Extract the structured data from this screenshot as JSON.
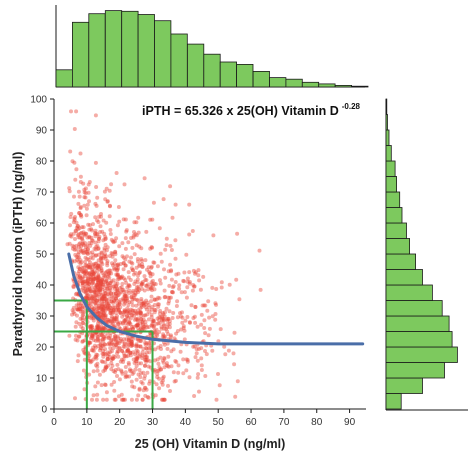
{
  "chart_data": {
    "type": "scatter",
    "title": "",
    "xlabel": "25 (OH) Vitamin D (ng/ml)",
    "ylabel": "Parathyroid hormon (iPTH) (ng/ml)",
    "xlim": [
      0,
      95
    ],
    "ylim": [
      0,
      100
    ],
    "x_ticks": [
      "0",
      "10",
      "20",
      "30",
      "40",
      "50",
      "60",
      "70",
      "80",
      "90"
    ],
    "y_ticks": [
      "0",
      "10",
      "20",
      "30",
      "40",
      "50",
      "60",
      "70",
      "80",
      "90",
      "100"
    ],
    "grid": false,
    "equation": {
      "text": "iPTH = 65.326 x 25(OH) Vitamin D",
      "exponent": "-0.28"
    },
    "colors": {
      "points": "#e8483a",
      "fit_line": "#4a6ea8",
      "guides": "#3aa845",
      "histogram_fill": "#7dc95e",
      "histogram_stroke": "#1a1a1a"
    },
    "fit_curve": {
      "x": [
        4.5,
        6,
        8,
        10,
        13,
        16,
        20,
        25,
        30,
        40,
        50,
        60,
        70,
        80,
        94
      ],
      "y": [
        50,
        43,
        37,
        33,
        29.5,
        27,
        25,
        23.5,
        22.5,
        21.5,
        21,
        21,
        21,
        21,
        21
      ]
    },
    "guide_lines": [
      {
        "x": 10,
        "y": 35
      },
      {
        "x": 30,
        "y": 25
      }
    ],
    "scatter_summary": {
      "n_points": 1800,
      "x_range": [
        3,
        92
      ],
      "y_range": [
        3,
        96
      ]
    },
    "histogram_x": {
      "bin_edges": [
        0,
        5,
        10,
        15,
        20,
        25,
        30,
        35,
        40,
        45,
        50,
        55,
        60,
        65,
        70,
        75,
        80,
        85,
        90,
        95
      ],
      "relative_heights": [
        0.22,
        0.83,
        0.94,
        0.98,
        0.97,
        0.93,
        0.85,
        0.68,
        0.55,
        0.42,
        0.32,
        0.29,
        0.2,
        0.12,
        0.1,
        0.06,
        0.04,
        0.02,
        0.01
      ]
    },
    "histogram_y": {
      "bin_edges": [
        0,
        5,
        10,
        15,
        20,
        25,
        30,
        35,
        40,
        45,
        50,
        55,
        60,
        65,
        70,
        75,
        80,
        85,
        90,
        95,
        100
      ],
      "relative_heights": [
        0.2,
        0.48,
        0.77,
        0.94,
        0.87,
        0.83,
        0.74,
        0.61,
        0.48,
        0.39,
        0.31,
        0.27,
        0.21,
        0.18,
        0.14,
        0.12,
        0.07,
        0.04,
        0.02,
        0.01
      ]
    }
  }
}
